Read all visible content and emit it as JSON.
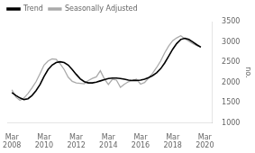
{
  "chart_data": {
    "type": "line",
    "title": "",
    "ylabel": "no.",
    "x": [
      2008.17,
      2008.42,
      2008.67,
      2008.92,
      2009.17,
      2009.42,
      2009.67,
      2009.92,
      2010.17,
      2010.42,
      2010.67,
      2010.92,
      2011.17,
      2011.42,
      2011.67,
      2011.92,
      2012.17,
      2012.42,
      2012.67,
      2012.92,
      2013.17,
      2013.42,
      2013.67,
      2013.92,
      2014.17,
      2014.42,
      2014.67,
      2014.92,
      2015.17,
      2015.42,
      2015.67,
      2015.92,
      2016.17,
      2016.42,
      2016.67,
      2016.92,
      2017.17,
      2017.42,
      2017.67,
      2017.92,
      2018.17,
      2018.42,
      2018.67,
      2018.92,
      2019.17,
      2019.42,
      2019.67,
      2019.92
    ],
    "series": [
      {
        "name": "Trend",
        "color": "#000000",
        "values": [
          1750,
          1680,
          1620,
          1580,
          1600,
          1680,
          1800,
          1950,
          2150,
          2320,
          2430,
          2490,
          2510,
          2490,
          2430,
          2320,
          2200,
          2090,
          2020,
          1990,
          1990,
          2010,
          2040,
          2070,
          2100,
          2110,
          2110,
          2100,
          2080,
          2060,
          2050,
          2050,
          2060,
          2080,
          2120,
          2170,
          2240,
          2340,
          2480,
          2650,
          2820,
          2960,
          3060,
          3090,
          3060,
          3000,
          2930,
          2870
        ]
      },
      {
        "name": "Seasonally Adjusted",
        "color": "#aaaaaa",
        "values": [
          1820,
          1640,
          1560,
          1620,
          1730,
          1870,
          2020,
          2220,
          2430,
          2530,
          2580,
          2570,
          2460,
          2320,
          2130,
          2030,
          1990,
          1980,
          1970,
          2050,
          2100,
          2140,
          2290,
          2090,
          1950,
          2080,
          2060,
          1880,
          1960,
          2020,
          2050,
          2080,
          1960,
          2000,
          2110,
          2230,
          2370,
          2530,
          2730,
          2900,
          3030,
          3100,
          3150,
          3080,
          3020,
          2960,
          2910,
          2870
        ]
      }
    ],
    "xlim": [
      2007.9,
      2020.6
    ],
    "xticks": [
      {
        "value": 2008.17,
        "label": "Mar\n2008"
      },
      {
        "value": 2010.17,
        "label": "Mar\n2010"
      },
      {
        "value": 2012.17,
        "label": "Mar\n2012"
      },
      {
        "value": 2014.17,
        "label": "Mar\n2014"
      },
      {
        "value": 2016.17,
        "label": "Mar\n2016"
      },
      {
        "value": 2018.17,
        "label": "Mar\n2018"
      },
      {
        "value": 2020.17,
        "label": "Mar\n2020"
      }
    ],
    "ylim": [
      1000,
      3500
    ],
    "yticks": [
      1000,
      1500,
      2000,
      2500,
      3000,
      3500
    ],
    "grid": false,
    "legend": "upper left"
  }
}
